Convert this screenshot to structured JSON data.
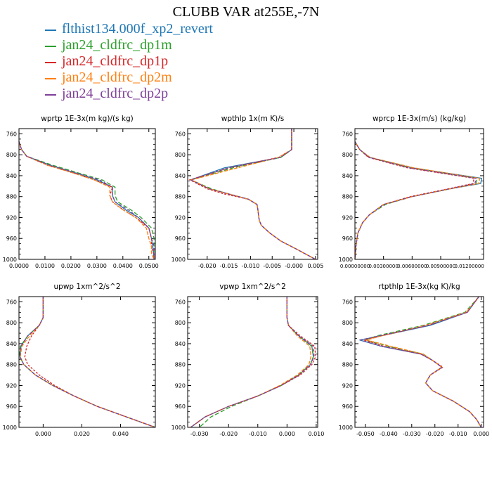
{
  "title": "CLUBB VAR at255E,-7N",
  "legend": [
    {
      "label": "flthist134.000f_xp2_revert",
      "color": "#1f77b4"
    },
    {
      "label": "jan24_cldfrc_dp1m",
      "color": "#2ca02c"
    },
    {
      "label": "jan24_cldfrc_dp1p",
      "color": "#d62728"
    },
    {
      "label": "jan24_cldfrc_dp2m",
      "color": "#ff7f0e"
    },
    {
      "label": "jan24_cldfrc_dp2p",
      "color": "#7f3f98"
    }
  ],
  "chart_data": [
    {
      "type": "line",
      "title": "wprtp  1E-3x(m kg)/(s kg)",
      "xlim": [
        0.0,
        0.0525
      ],
      "ylim": [
        1000,
        750
      ],
      "xticks": [
        0.0,
        0.01,
        0.02,
        0.03,
        0.04,
        0.05
      ],
      "xticklabels": [
        "0.0000",
        "0.0100",
        "0.0200",
        "0.0300",
        "0.0400",
        "0.0500"
      ],
      "yticks": [
        760,
        800,
        840,
        880,
        920,
        960,
        1000
      ],
      "y": [
        775,
        790,
        803,
        820,
        835,
        848,
        862,
        878,
        890,
        905,
        920,
        940,
        960,
        975,
        990,
        1000
      ],
      "series": [
        {
          "values": [
            0.0,
            0.001,
            0.003,
            0.012,
            0.022,
            0.03,
            0.036,
            0.036,
            0.037,
            0.041,
            0.046,
            0.05,
            0.051,
            0.0515,
            0.0518,
            0.052
          ]
        },
        {
          "values": [
            0.0,
            0.001,
            0.003,
            0.013,
            0.023,
            0.032,
            0.037,
            0.037,
            0.038,
            0.043,
            0.047,
            0.051,
            0.052,
            0.052,
            0.052,
            0.052
          ]
        },
        {
          "values": [
            0.0,
            0.001,
            0.003,
            0.011,
            0.021,
            0.029,
            0.036,
            0.035,
            0.036,
            0.04,
            0.045,
            0.05,
            0.051,
            0.051,
            0.052,
            0.052
          ]
        },
        {
          "values": [
            0.0,
            0.001,
            0.003,
            0.011,
            0.021,
            0.029,
            0.035,
            0.035,
            0.036,
            0.04,
            0.045,
            0.049,
            0.05,
            0.051,
            0.051,
            0.052
          ]
        },
        {
          "values": [
            0.0,
            0.001,
            0.003,
            0.012,
            0.022,
            0.031,
            0.036,
            0.036,
            0.037,
            0.042,
            0.046,
            0.05,
            0.051,
            0.052,
            0.052,
            0.052
          ]
        }
      ]
    },
    {
      "type": "line",
      "title": "wpthlp  1x(m K)/s",
      "xlim": [
        -0.0245,
        0.0055
      ],
      "ylim": [
        1000,
        750
      ],
      "xticks": [
        -0.02,
        -0.015,
        -0.01,
        -0.005,
        0.0,
        0.005
      ],
      "xticklabels": [
        "-0.020",
        "-0.015",
        "-0.010",
        "-0.005",
        "-0.000",
        "0.005"
      ],
      "yticks": [
        760,
        800,
        840,
        880,
        920,
        960,
        1000
      ],
      "y": [
        750,
        790,
        805,
        825,
        848,
        865,
        875,
        885,
        895,
        905,
        925,
        935,
        950,
        965,
        980,
        1000
      ],
      "series": [
        {
          "values": [
            -0.0005,
            -0.0005,
            -0.003,
            -0.016,
            -0.0238,
            -0.0195,
            -0.015,
            -0.0105,
            -0.0085,
            -0.0083,
            -0.008,
            -0.0075,
            -0.0055,
            -0.003,
            0.0005,
            0.005
          ]
        },
        {
          "values": [
            -0.0005,
            -0.0005,
            -0.003,
            -0.014,
            -0.0238,
            -0.019,
            -0.015,
            -0.0105,
            -0.0085,
            -0.0083,
            -0.008,
            -0.0075,
            -0.0055,
            -0.003,
            0.0005,
            0.005
          ]
        },
        {
          "values": [
            -0.0005,
            -0.0005,
            -0.0035,
            -0.015,
            -0.024,
            -0.02,
            -0.016,
            -0.0105,
            -0.0085,
            -0.0083,
            -0.008,
            -0.0075,
            -0.0055,
            -0.003,
            0.0005,
            0.005
          ]
        },
        {
          "values": [
            -0.0005,
            -0.0005,
            -0.0035,
            -0.013,
            -0.0236,
            -0.0195,
            -0.015,
            -0.0105,
            -0.0085,
            -0.0083,
            -0.008,
            -0.0075,
            -0.0055,
            -0.003,
            0.0005,
            0.005
          ]
        },
        {
          "values": [
            -0.0005,
            -0.0005,
            -0.003,
            -0.015,
            -0.0238,
            -0.0195,
            -0.015,
            -0.0105,
            -0.0085,
            -0.0083,
            -0.008,
            -0.0075,
            -0.0055,
            -0.003,
            0.0005,
            0.005
          ]
        }
      ]
    },
    {
      "type": "line",
      "title": "wprcp  1E-3x(m/s) (kg/kg)",
      "xlim": [
        0.0,
        0.0135
      ],
      "ylim": [
        1000,
        750
      ],
      "xticks": [
        0.0,
        0.003,
        0.006,
        0.009,
        0.012
      ],
      "xticklabels": [
        "0.00000000",
        "0.00300000",
        "0.00600000",
        "0.00900000",
        "0.01200000"
      ],
      "yticks": [
        760,
        800,
        840,
        880,
        920,
        960,
        1000
      ],
      "y": [
        775,
        790,
        805,
        825,
        845,
        855,
        865,
        880,
        895,
        915,
        930,
        950,
        975,
        1000
      ],
      "series": [
        {
          "values": [
            0.0,
            0.0005,
            0.0015,
            0.006,
            0.0133,
            0.0132,
            0.01,
            0.006,
            0.003,
            0.0015,
            0.0008,
            0.0003,
            0.0001,
            0.0
          ]
        },
        {
          "values": [
            0.0,
            0.0005,
            0.0015,
            0.0058,
            0.0128,
            0.0127,
            0.01,
            0.006,
            0.0032,
            0.0015,
            0.0008,
            0.0003,
            0.0001,
            0.0
          ]
        },
        {
          "values": [
            0.0,
            0.0005,
            0.0014,
            0.0055,
            0.0125,
            0.0124,
            0.0098,
            0.0058,
            0.003,
            0.0015,
            0.0008,
            0.0003,
            0.0001,
            0.0
          ]
        },
        {
          "values": [
            0.0,
            0.0005,
            0.0016,
            0.0062,
            0.0131,
            0.013,
            0.01,
            0.006,
            0.003,
            0.0015,
            0.0008,
            0.0003,
            0.0001,
            0.0
          ]
        },
        {
          "values": [
            0.0,
            0.0005,
            0.0015,
            0.0057,
            0.0127,
            0.0126,
            0.0099,
            0.006,
            0.003,
            0.0015,
            0.0008,
            0.0003,
            0.0001,
            0.0
          ]
        }
      ]
    },
    {
      "type": "line",
      "title": "upwp  1xm^2/s^2",
      "xlim": [
        -0.0125,
        0.058
      ],
      "ylim": [
        1000,
        750
      ],
      "xticks": [
        0.0,
        0.02,
        0.04
      ],
      "xticklabels": [
        "0.000",
        "0.020",
        "0.040"
      ],
      "yticks": [
        760,
        800,
        840,
        880,
        920,
        960,
        1000
      ],
      "y": [
        750,
        790,
        805,
        825,
        845,
        865,
        880,
        900,
        920,
        940,
        960,
        980,
        1000
      ],
      "series": [
        {
          "values": [
            0.0,
            0.0,
            -0.002,
            -0.008,
            -0.0115,
            -0.012,
            -0.01,
            -0.004,
            0.005,
            0.016,
            0.028,
            0.043,
            0.058
          ]
        },
        {
          "values": [
            0.0,
            0.0,
            -0.002,
            -0.008,
            -0.0118,
            -0.0123,
            -0.01,
            -0.004,
            0.005,
            0.016,
            0.028,
            0.043,
            0.058
          ]
        },
        {
          "values": [
            0.0,
            0.0,
            -0.002,
            -0.006,
            -0.0085,
            -0.0095,
            -0.008,
            -0.002,
            0.006,
            0.016,
            0.028,
            0.043,
            0.058
          ]
        },
        {
          "values": [
            0.0,
            0.0,
            -0.002,
            -0.007,
            -0.011,
            -0.0118,
            -0.01,
            -0.004,
            0.005,
            0.016,
            0.028,
            0.043,
            0.058
          ]
        },
        {
          "values": [
            0.0,
            0.0,
            -0.002,
            -0.008,
            -0.0115,
            -0.012,
            -0.01,
            -0.004,
            0.005,
            0.016,
            0.028,
            0.043,
            0.058
          ]
        }
      ]
    },
    {
      "type": "line",
      "title": "vpwp  1xm^2/s^2",
      "xlim": [
        -0.034,
        0.0105
      ],
      "ylim": [
        1000,
        750
      ],
      "xticks": [
        -0.03,
        -0.02,
        -0.01,
        0.0,
        0.01
      ],
      "xticklabels": [
        "-0.030",
        "-0.020",
        "-0.010",
        "0.000",
        "0.010"
      ],
      "yticks": [
        760,
        800,
        840,
        880,
        920,
        960,
        1000
      ],
      "y": [
        750,
        790,
        805,
        825,
        845,
        865,
        880,
        900,
        920,
        940,
        960,
        980,
        1000
      ],
      "series": [
        {
          "values": [
            0.0,
            0.0,
            0.0005,
            0.004,
            0.0085,
            0.009,
            0.008,
            0.004,
            -0.002,
            -0.01,
            -0.02,
            -0.028,
            -0.033
          ]
        },
        {
          "values": [
            0.0,
            0.0,
            0.0005,
            0.004,
            0.0085,
            0.009,
            0.008,
            0.004,
            -0.002,
            -0.01,
            -0.019,
            -0.026,
            -0.03
          ]
        },
        {
          "values": [
            0.0,
            0.0,
            0.0005,
            0.0045,
            0.0095,
            0.0098,
            0.0085,
            0.0045,
            -0.002,
            -0.01,
            -0.02,
            -0.028,
            -0.033
          ]
        },
        {
          "values": [
            0.0,
            0.0,
            0.0005,
            0.0035,
            0.0078,
            0.0082,
            0.0075,
            0.0035,
            -0.0025,
            -0.01,
            -0.02,
            -0.028,
            -0.033
          ]
        },
        {
          "values": [
            0.0,
            0.0,
            0.0005,
            0.004,
            0.009,
            0.0093,
            0.008,
            0.004,
            -0.002,
            -0.01,
            -0.02,
            -0.028,
            -0.033
          ]
        }
      ]
    },
    {
      "type": "line",
      "title": "rtpthlp  1E-3x(kg K)/kg",
      "xlim": [
        -0.0545,
        0.001
      ],
      "ylim": [
        1000,
        750
      ],
      "xticks": [
        -0.05,
        -0.04,
        -0.03,
        -0.02,
        -0.01,
        0.0
      ],
      "xticklabels": [
        "-0.050",
        "-0.040",
        "-0.030",
        "-0.020",
        "-0.010",
        "0.000"
      ],
      "yticks": [
        760,
        800,
        840,
        880,
        920,
        960,
        1000
      ],
      "y": [
        750,
        780,
        805,
        825,
        833,
        845,
        860,
        872,
        885,
        900,
        915,
        930,
        950,
        970,
        985,
        1000
      ],
      "series": [
        {
          "values": [
            -0.001,
            -0.006,
            -0.022,
            -0.043,
            -0.0525,
            -0.043,
            -0.026,
            -0.021,
            -0.017,
            -0.022,
            -0.024,
            -0.021,
            -0.012,
            -0.005,
            -0.002,
            0.0
          ]
        },
        {
          "values": [
            -0.001,
            -0.007,
            -0.025,
            -0.045,
            -0.05,
            -0.04,
            -0.025,
            -0.021,
            -0.017,
            -0.022,
            -0.024,
            -0.021,
            -0.012,
            -0.005,
            -0.002,
            0.0
          ]
        },
        {
          "values": [
            -0.001,
            -0.006,
            -0.023,
            -0.043,
            -0.0505,
            -0.042,
            -0.026,
            -0.021,
            -0.0165,
            -0.022,
            -0.024,
            -0.021,
            -0.012,
            -0.005,
            -0.002,
            0.0
          ]
        },
        {
          "values": [
            -0.001,
            -0.0065,
            -0.024,
            -0.043,
            -0.0495,
            -0.039,
            -0.025,
            -0.021,
            -0.017,
            -0.022,
            -0.024,
            -0.021,
            -0.012,
            -0.005,
            -0.002,
            0.0
          ]
        },
        {
          "values": [
            -0.001,
            -0.006,
            -0.023,
            -0.044,
            -0.052,
            -0.043,
            -0.026,
            -0.021,
            -0.017,
            -0.022,
            -0.024,
            -0.021,
            -0.012,
            -0.005,
            -0.002,
            0.0
          ]
        }
      ]
    }
  ]
}
